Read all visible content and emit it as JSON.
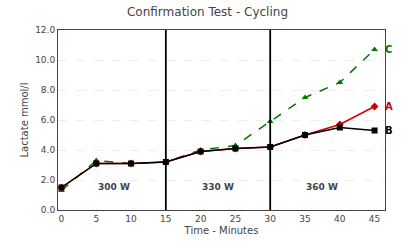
{
  "chart_data": {
    "type": "line",
    "title": "Confirmation Test - Cycling",
    "x_label": "Time - Minutes",
    "y_label": "Lactate mmol/l",
    "x": [
      0,
      5,
      10,
      15,
      20,
      25,
      30,
      35,
      40,
      45
    ],
    "series": [
      {
        "name": "C",
        "color": "#007700",
        "marker": "triangle-up",
        "line_style": "dashed",
        "values": [
          1.3,
          3.3,
          3.1,
          3.2,
          4.0,
          4.3,
          5.9,
          7.5,
          8.5,
          10.7
        ]
      },
      {
        "name": "A",
        "color": "#cc0000",
        "marker": "diamond",
        "line_style": "solid",
        "values": [
          1.5,
          3.1,
          3.1,
          3.2,
          3.9,
          4.1,
          4.2,
          5.0,
          5.7,
          6.9
        ]
      },
      {
        "name": "B",
        "color": "#000000",
        "marker": "square",
        "line_style": "solid",
        "values": [
          1.5,
          3.1,
          3.1,
          3.2,
          3.9,
          4.1,
          4.2,
          5.0,
          5.5,
          5.3
        ]
      }
    ],
    "vlines": [
      15,
      30
    ],
    "annotations": [
      {
        "x": 7.5,
        "y": 1.05,
        "text": "300 W"
      },
      {
        "x": 22.5,
        "y": 1.05,
        "text": "330 W"
      },
      {
        "x": 37.5,
        "y": 1.05,
        "text": "360 W"
      }
    ],
    "xlim": [
      -0.5,
      46.5
    ],
    "xticks": [
      0,
      5,
      10,
      15,
      20,
      25,
      30,
      35,
      40,
      45
    ],
    "ylim": [
      0.0,
      12.0
    ],
    "yticks": [
      {
        "value": 0,
        "label": "0.0"
      },
      {
        "value": 2,
        "label": "2.0"
      },
      {
        "value": 4,
        "label": "4.0"
      },
      {
        "value": 6,
        "label": "6.0"
      },
      {
        "value": 8,
        "label": "8.0"
      },
      {
        "value": 10,
        "label": "10.0"
      },
      {
        "value": 12,
        "label": "12.0"
      }
    ],
    "grid": "y"
  }
}
